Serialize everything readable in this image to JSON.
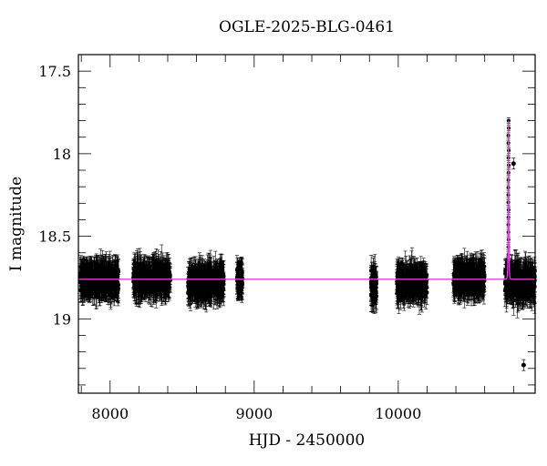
{
  "chart_data": {
    "type": "scatter",
    "title": "OGLE-2025-BLG-0461",
    "xlabel": "HJD - 2450000",
    "ylabel": "I magnitude",
    "xlim": [
      7780,
      10950
    ],
    "ylim": [
      19.45,
      17.4
    ],
    "y_inverted": true,
    "x_ticks_major": [
      8000,
      9000,
      10000
    ],
    "y_ticks_major": [
      17.5,
      18,
      18.5,
      19
    ],
    "grid": false,
    "legend": null,
    "baseline_magnitude": 18.76,
    "model_color": "#e040e0",
    "point_color": "#000000",
    "seasons": [
      {
        "x_start": 7790,
        "x_end": 8060,
        "mag_center": 18.76,
        "mag_spread": 0.1
      },
      {
        "x_start": 8160,
        "x_end": 8420,
        "mag_center": 18.76,
        "mag_spread": 0.1
      },
      {
        "x_start": 8540,
        "x_end": 8790,
        "mag_center": 18.78,
        "mag_spread": 0.1
      },
      {
        "x_start": 8880,
        "x_end": 8920,
        "mag_center": 18.76,
        "mag_spread": 0.08
      },
      {
        "x_start": 9810,
        "x_end": 9850,
        "mag_center": 18.8,
        "mag_spread": 0.12
      },
      {
        "x_start": 9990,
        "x_end": 10200,
        "mag_center": 18.78,
        "mag_spread": 0.1
      },
      {
        "x_start": 10380,
        "x_end": 10600,
        "mag_center": 18.76,
        "mag_spread": 0.1
      },
      {
        "x_start": 10740,
        "x_end": 10950,
        "mag_center": 18.78,
        "mag_spread": 0.12
      }
    ],
    "event": {
      "peak_time": 10765,
      "peak_magnitude": 17.8,
      "outlier": {
        "x": 10800,
        "mag": 18.06
      },
      "faint_outlier": {
        "x": 10870,
        "mag": 19.28
      }
    }
  }
}
